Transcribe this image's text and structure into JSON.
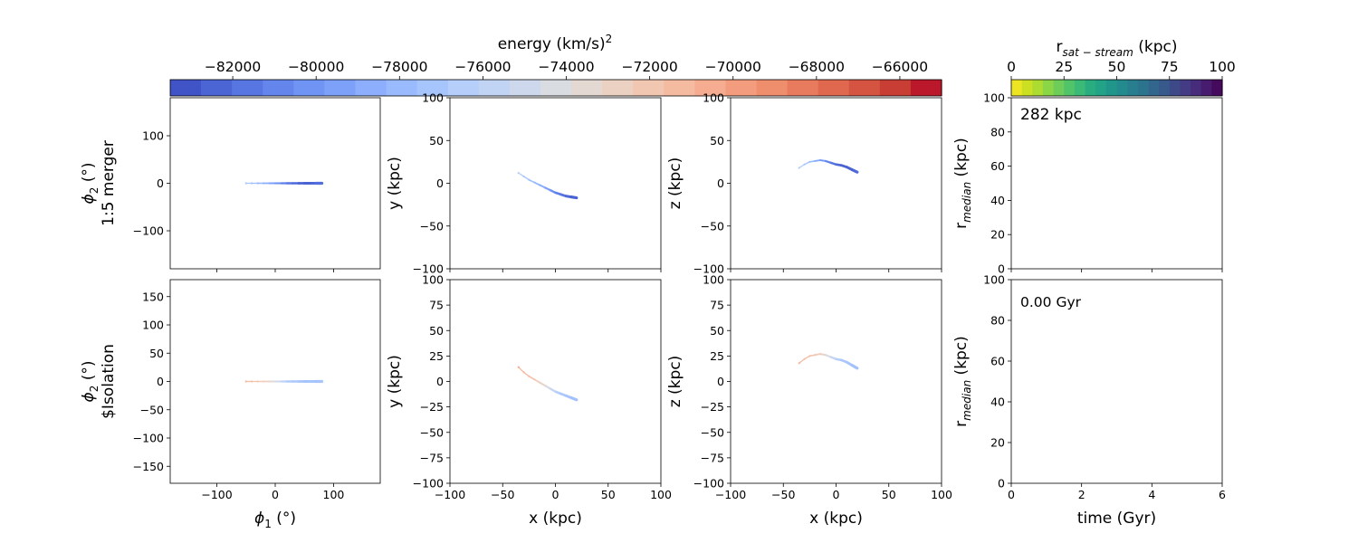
{
  "chart_data": [
    {
      "type": "scatter",
      "panel": "top-phi",
      "row_label_line1": "ϕ",
      "row_label_sub": "2",
      "row_label_unit": " (°)",
      "row_label_line2": "1:5 merger",
      "xlim": [
        -180,
        180
      ],
      "ylim": [
        -180,
        180
      ],
      "xticks": [
        -100,
        0,
        100
      ],
      "yticks": [
        -100,
        0,
        100
      ],
      "xlabel": "",
      "ylabel": "",
      "points": [
        [
          -50,
          0
        ],
        [
          -40,
          0
        ],
        [
          -30,
          0
        ],
        [
          -20,
          0
        ],
        [
          -10,
          0
        ],
        [
          0,
          0
        ],
        [
          10,
          0
        ],
        [
          20,
          0
        ],
        [
          30,
          0
        ],
        [
          40,
          0
        ],
        [
          50,
          0
        ],
        [
          60,
          0
        ],
        [
          70,
          0
        ],
        [
          80,
          0
        ]
      ],
      "energies": [
        -77000,
        -77500,
        -78000,
        -78500,
        -79000,
        -80000,
        -81000,
        -81500,
        -82000,
        -82500,
        -82500,
        -82500,
        -82000,
        -82000
      ]
    },
    {
      "type": "scatter",
      "panel": "top-xy",
      "xlim": [
        -100,
        100
      ],
      "ylim": [
        -100,
        100
      ],
      "xticks": [
        -100,
        -50,
        0,
        50,
        100
      ],
      "yticks": [
        -100,
        -50,
        0,
        50,
        100
      ],
      "ylabel": "y (kpc)",
      "points": [
        [
          -35,
          12
        ],
        [
          -30,
          8
        ],
        [
          -25,
          4
        ],
        [
          -20,
          1
        ],
        [
          -15,
          -2
        ],
        [
          -10,
          -5
        ],
        [
          -5,
          -8
        ],
        [
          0,
          -11
        ],
        [
          5,
          -13
        ],
        [
          10,
          -15
        ],
        [
          15,
          -16
        ],
        [
          20,
          -17
        ]
      ],
      "energies": [
        -76500,
        -77000,
        -77500,
        -78000,
        -78500,
        -79000,
        -80000,
        -81000,
        -81500,
        -82000,
        -82500,
        -82500
      ]
    },
    {
      "type": "scatter",
      "panel": "top-xz",
      "xlim": [
        -100,
        100
      ],
      "ylim": [
        -100,
        100
      ],
      "xticks": [
        -100,
        -50,
        0,
        50,
        100
      ],
      "yticks": [
        -100,
        -50,
        0,
        50,
        100
      ],
      "ylabel": "z (kpc)",
      "points": [
        [
          -35,
          18
        ],
        [
          -30,
          22
        ],
        [
          -25,
          25
        ],
        [
          -20,
          26
        ],
        [
          -15,
          27
        ],
        [
          -10,
          26
        ],
        [
          -5,
          24
        ],
        [
          0,
          22
        ],
        [
          5,
          21
        ],
        [
          10,
          19
        ],
        [
          15,
          16
        ],
        [
          20,
          13
        ]
      ],
      "energies": [
        -76500,
        -77000,
        -77500,
        -78500,
        -79500,
        -80500,
        -81500,
        -82000,
        -82500,
        -82500,
        -82500,
        -82000
      ]
    },
    {
      "type": "line",
      "panel": "top-rmed",
      "xlim": [
        0,
        6
      ],
      "ylim": [
        0,
        100
      ],
      "xticks": [
        0,
        2,
        4,
        6
      ],
      "yticks": [
        0,
        20,
        40,
        60,
        80,
        100
      ],
      "ylabel_main": "r",
      "ylabel_sub": "median",
      "ylabel_unit": " (kpc)",
      "annotation": "282 kpc",
      "series": []
    },
    {
      "type": "scatter",
      "panel": "bottom-phi",
      "row_label_line1": "ϕ",
      "row_label_sub": "2",
      "row_label_unit": " (°)",
      "row_label_line2": "$Isolation",
      "xlim": [
        -180,
        180
      ],
      "ylim": [
        -180,
        180
      ],
      "xticks": [
        -100,
        0,
        100
      ],
      "yticks": [
        -150,
        -100,
        -50,
        0,
        50,
        100,
        150
      ],
      "xlabel_main": "ϕ",
      "xlabel_sub": "1",
      "xlabel_unit": " (°)",
      "points": [
        [
          -50,
          0
        ],
        [
          -40,
          0
        ],
        [
          -30,
          0
        ],
        [
          -20,
          0
        ],
        [
          -10,
          0
        ],
        [
          0,
          0
        ],
        [
          10,
          0
        ],
        [
          20,
          0
        ],
        [
          30,
          0
        ],
        [
          40,
          0
        ],
        [
          50,
          0
        ],
        [
          60,
          0
        ],
        [
          70,
          0
        ],
        [
          80,
          0
        ]
      ],
      "energies": [
        -71000,
        -71500,
        -72000,
        -72500,
        -73000,
        -74500,
        -75500,
        -76500,
        -77000,
        -77000,
        -77500,
        -77000,
        -77500,
        -77000
      ]
    },
    {
      "type": "scatter",
      "panel": "bottom-xy",
      "xlim": [
        -100,
        100
      ],
      "ylim": [
        -100,
        100
      ],
      "xticks": [
        -100,
        -50,
        0,
        50,
        100
      ],
      "yticks": [
        -100,
        -75,
        -50,
        -25,
        0,
        25,
        50,
        75,
        100
      ],
      "xlabel": "x (kpc)",
      "ylabel": "y (kpc)",
      "points": [
        [
          -35,
          14
        ],
        [
          -30,
          9
        ],
        [
          -25,
          5
        ],
        [
          -20,
          2
        ],
        [
          -15,
          -1
        ],
        [
          -10,
          -4
        ],
        [
          -5,
          -7
        ],
        [
          0,
          -10
        ],
        [
          5,
          -12
        ],
        [
          10,
          -14
        ],
        [
          15,
          -16
        ],
        [
          20,
          -18
        ]
      ],
      "energies": [
        -70500,
        -71000,
        -71500,
        -72000,
        -72500,
        -73500,
        -75000,
        -76000,
        -77000,
        -77000,
        -77500,
        -77500
      ]
    },
    {
      "type": "scatter",
      "panel": "bottom-xz",
      "xlim": [
        -100,
        100
      ],
      "ylim": [
        -100,
        100
      ],
      "xticks": [
        -100,
        -50,
        0,
        50,
        100
      ],
      "yticks": [
        -100,
        -75,
        -50,
        -25,
        0,
        25,
        50,
        75,
        100
      ],
      "xlabel": "x (kpc)",
      "ylabel": "z (kpc)",
      "points": [
        [
          -35,
          18
        ],
        [
          -30,
          22
        ],
        [
          -25,
          25
        ],
        [
          -20,
          26
        ],
        [
          -15,
          27
        ],
        [
          -10,
          26
        ],
        [
          -5,
          24
        ],
        [
          0,
          22
        ],
        [
          5,
          21
        ],
        [
          10,
          19
        ],
        [
          15,
          16
        ],
        [
          20,
          13
        ]
      ],
      "energies": [
        -71000,
        -71500,
        -71500,
        -72000,
        -72500,
        -73500,
        -75000,
        -76000,
        -77000,
        -77000,
        -77500,
        -77500
      ]
    },
    {
      "type": "line",
      "panel": "bottom-rmed",
      "xlim": [
        0,
        6
      ],
      "ylim": [
        0,
        100
      ],
      "xticks": [
        0,
        2,
        4,
        6
      ],
      "yticks": [
        0,
        20,
        40,
        60,
        80,
        100
      ],
      "xlabel": "time (Gyr)",
      "ylabel_main": "r",
      "ylabel_sub": "median",
      "ylabel_unit": " (kpc)",
      "annotation": "0.00 Gyr",
      "series": []
    }
  ],
  "energy_colorbar": {
    "label": "energy (km/s)",
    "label_sup": "2",
    "range": [
      -83500,
      -65000
    ],
    "ticks": [
      -82000,
      -80000,
      -78000,
      -76000,
      -74000,
      -72000,
      -70000,
      -68000,
      -66000
    ],
    "colors": [
      "#3b4cc0",
      "#4a63d3",
      "#5b7be5",
      "#6c8ff1",
      "#7ea2f9",
      "#92b4fe",
      "#a5c3fe",
      "#b8d0f9",
      "#c9d7f0",
      "#d9dce1",
      "#e7d6cc",
      "#f1cab6",
      "#f5b99e",
      "#f5a486",
      "#ef8f6e",
      "#e67558",
      "#d85a44",
      "#c73b33",
      "#b40426"
    ]
  },
  "distance_colorbar": {
    "label_main": "r",
    "label_sub": "sat − stream",
    "label_unit": " (kpc)",
    "range": [
      0,
      100
    ],
    "ticks": [
      0,
      25,
      50,
      75,
      100
    ],
    "colors": [
      "#fde725",
      "#c2df23",
      "#86d549",
      "#52c569",
      "#2ab07f",
      "#1e9b8a",
      "#25858e",
      "#2d708e",
      "#38588c",
      "#433e85",
      "#482173",
      "#440154"
    ]
  }
}
